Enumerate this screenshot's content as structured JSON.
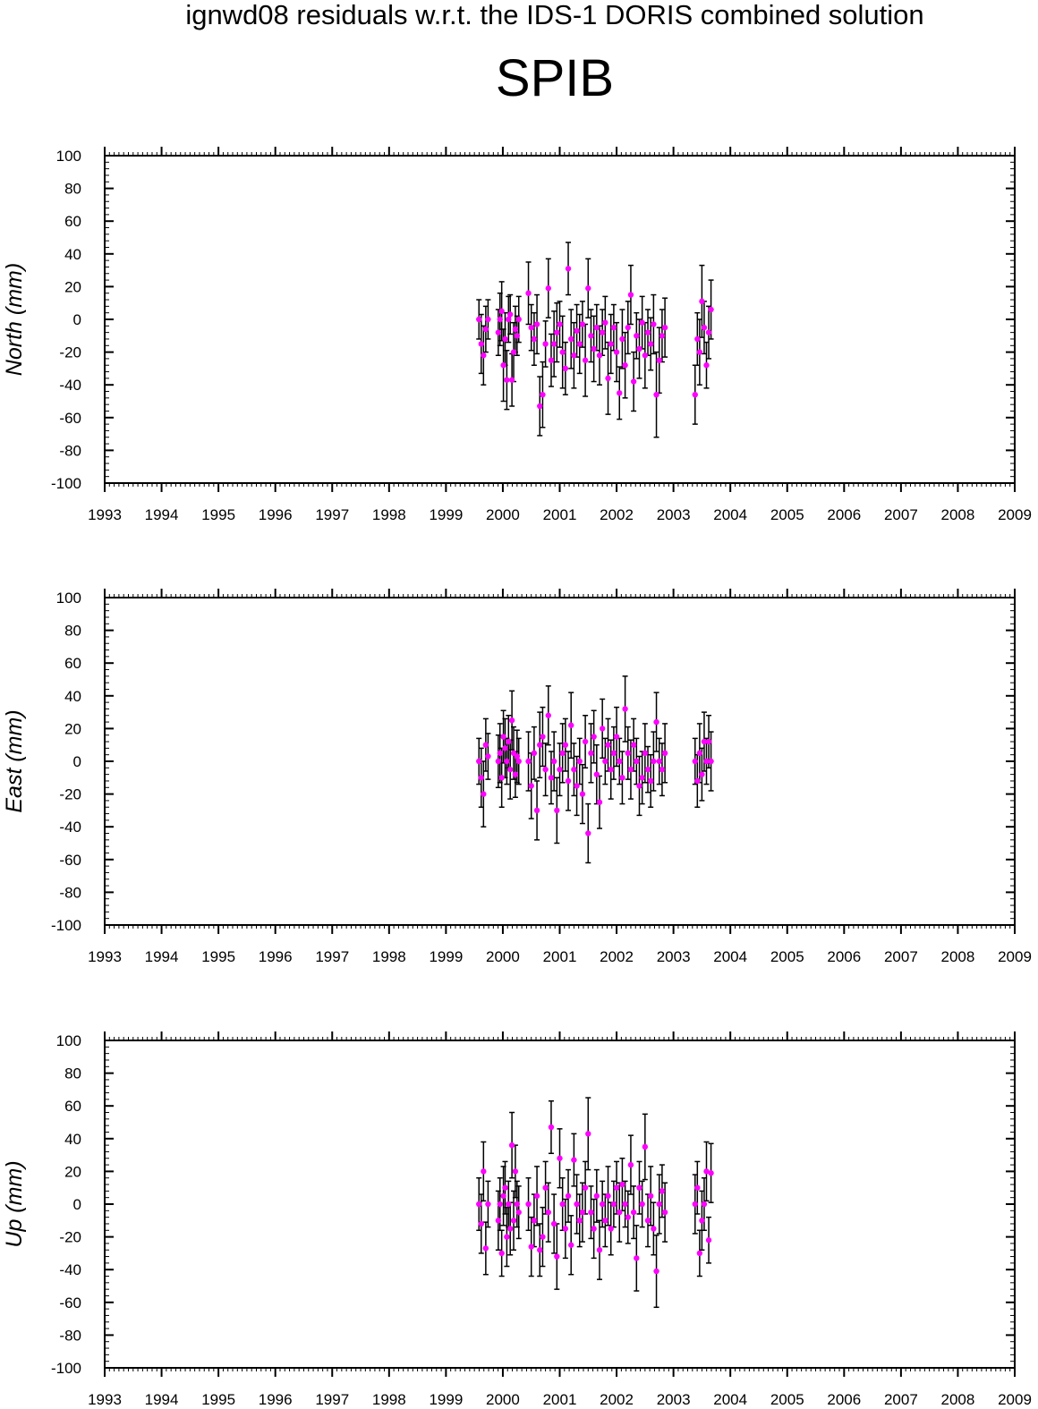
{
  "header": {
    "title": "ignwd08 residuals w.r.t. the IDS-1 DORIS combined solution",
    "station": "SPIB"
  },
  "colors": {
    "point": "#ff00ff",
    "errorbar": "#000000",
    "axes": "#000000"
  },
  "chart_data": [
    {
      "type": "scatter",
      "ylabel": "North (mm)",
      "xlim": [
        1993,
        2009
      ],
      "ylim": [
        -100,
        100
      ],
      "xticks": [
        "1993",
        "1994",
        "1995",
        "1996",
        "1997",
        "1998",
        "1999",
        "2000",
        "2001",
        "2002",
        "2003",
        "2004",
        "2005",
        "2006",
        "2007",
        "2008",
        "2009"
      ],
      "yticks": [
        "100",
        "80",
        "60",
        "40",
        "20",
        "0",
        "-20",
        "-40",
        "-60",
        "-80",
        "-100"
      ],
      "error_bars": true,
      "points": [
        [
          1999.58,
          0,
          12
        ],
        [
          1999.62,
          -15,
          18
        ],
        [
          1999.66,
          -22,
          18
        ],
        [
          1999.7,
          -6,
          14
        ],
        [
          1999.74,
          0,
          12
        ],
        [
          1999.92,
          -8,
          14
        ],
        [
          1999.95,
          0,
          16
        ],
        [
          1999.98,
          5,
          18
        ],
        [
          2000.01,
          -28,
          22
        ],
        [
          2000.04,
          -12,
          16
        ],
        [
          2000.07,
          -37,
          18
        ],
        [
          2000.1,
          0,
          14
        ],
        [
          2000.13,
          3,
          12
        ],
        [
          2000.16,
          -37,
          16
        ],
        [
          2000.19,
          -20,
          18
        ],
        [
          2000.22,
          -6,
          14
        ],
        [
          2000.25,
          -10,
          12
        ],
        [
          2000.28,
          0,
          14
        ],
        [
          2000.45,
          16,
          19
        ],
        [
          2000.5,
          -5,
          14
        ],
        [
          2000.55,
          -12,
          16
        ],
        [
          2000.6,
          -3,
          18
        ],
        [
          2000.65,
          -53,
          18
        ],
        [
          2000.7,
          -46,
          20
        ],
        [
          2000.75,
          -15,
          14
        ],
        [
          2000.8,
          19,
          18
        ],
        [
          2000.85,
          -25,
          16
        ],
        [
          2000.9,
          -15,
          20
        ],
        [
          2000.95,
          -8,
          18
        ],
        [
          2001.0,
          -3,
          14
        ],
        [
          2001.05,
          -20,
          22
        ],
        [
          2001.1,
          -30,
          16
        ],
        [
          2001.15,
          31,
          16
        ],
        [
          2001.2,
          -12,
          18
        ],
        [
          2001.25,
          -22,
          20
        ],
        [
          2001.3,
          -7,
          16
        ],
        [
          2001.35,
          -15,
          18
        ],
        [
          2001.4,
          -3,
          14
        ],
        [
          2001.45,
          -25,
          22
        ],
        [
          2001.5,
          19,
          18
        ],
        [
          2001.55,
          -10,
          16
        ],
        [
          2001.6,
          -18,
          20
        ],
        [
          2001.65,
          -5,
          14
        ],
        [
          2001.7,
          -22,
          18
        ],
        [
          2001.75,
          -8,
          14
        ],
        [
          2001.8,
          -2,
          16
        ],
        [
          2001.85,
          -36,
          22
        ],
        [
          2001.9,
          -15,
          18
        ],
        [
          2001.95,
          -5,
          14
        ],
        [
          2002.0,
          -20,
          18
        ],
        [
          2002.05,
          -45,
          16
        ],
        [
          2002.1,
          -12,
          18
        ],
        [
          2002.15,
          -28,
          20
        ],
        [
          2002.2,
          -5,
          16
        ],
        [
          2002.25,
          15,
          18
        ],
        [
          2002.3,
          -38,
          18
        ],
        [
          2002.35,
          -10,
          14
        ],
        [
          2002.4,
          -18,
          18
        ],
        [
          2002.45,
          -2,
          16
        ],
        [
          2002.5,
          -22,
          20
        ],
        [
          2002.55,
          -8,
          14
        ],
        [
          2002.6,
          -15,
          16
        ],
        [
          2002.65,
          -3,
          18
        ],
        [
          2002.7,
          -46,
          26
        ],
        [
          2002.75,
          -25,
          20
        ],
        [
          2002.8,
          -10,
          16
        ],
        [
          2002.85,
          -5,
          18
        ],
        [
          2003.38,
          -46,
          18
        ],
        [
          2003.42,
          -12,
          16
        ],
        [
          2003.46,
          -20,
          20
        ],
        [
          2003.5,
          11,
          22
        ],
        [
          2003.54,
          -5,
          16
        ],
        [
          2003.58,
          -28,
          14
        ],
        [
          2003.62,
          -8,
          16
        ],
        [
          2003.66,
          6,
          18
        ]
      ]
    },
    {
      "type": "scatter",
      "ylabel": "East (mm)",
      "xlim": [
        1993,
        2009
      ],
      "ylim": [
        -100,
        100
      ],
      "xticks": [
        "1993",
        "1994",
        "1995",
        "1996",
        "1997",
        "1998",
        "1999",
        "2000",
        "2001",
        "2002",
        "2003",
        "2004",
        "2005",
        "2006",
        "2007",
        "2008",
        "2009"
      ],
      "yticks": [
        "100",
        "80",
        "60",
        "40",
        "20",
        "0",
        "-20",
        "-40",
        "-60",
        "-80",
        "-100"
      ],
      "error_bars": true,
      "points": [
        [
          1999.58,
          0,
          14
        ],
        [
          1999.62,
          -10,
          18
        ],
        [
          1999.66,
          -20,
          20
        ],
        [
          1999.7,
          10,
          16
        ],
        [
          1999.74,
          3,
          14
        ],
        [
          1999.92,
          0,
          16
        ],
        [
          1999.95,
          5,
          18
        ],
        [
          1999.98,
          -10,
          18
        ],
        [
          2000.01,
          15,
          16
        ],
        [
          2000.04,
          8,
          18
        ],
        [
          2000.07,
          0,
          14
        ],
        [
          2000.1,
          12,
          16
        ],
        [
          2000.13,
          -5,
          18
        ],
        [
          2000.16,
          25,
          18
        ],
        [
          2000.19,
          5,
          16
        ],
        [
          2000.22,
          -8,
          14
        ],
        [
          2000.25,
          3,
          16
        ],
        [
          2000.28,
          0,
          14
        ],
        [
          2000.45,
          0,
          18
        ],
        [
          2000.5,
          -15,
          20
        ],
        [
          2000.55,
          5,
          16
        ],
        [
          2000.6,
          -30,
          18
        ],
        [
          2000.65,
          10,
          20
        ],
        [
          2000.7,
          15,
          18
        ],
        [
          2000.75,
          -5,
          16
        ],
        [
          2000.8,
          28,
          18
        ],
        [
          2000.85,
          -10,
          16
        ],
        [
          2000.9,
          0,
          18
        ],
        [
          2000.95,
          -30,
          20
        ],
        [
          2001.0,
          -5,
          16
        ],
        [
          2001.05,
          5,
          18
        ],
        [
          2001.1,
          10,
          16
        ],
        [
          2001.15,
          -12,
          18
        ],
        [
          2001.2,
          22,
          20
        ],
        [
          2001.25,
          -5,
          16
        ],
        [
          2001.3,
          -15,
          18
        ],
        [
          2001.35,
          0,
          14
        ],
        [
          2001.4,
          -20,
          18
        ],
        [
          2001.45,
          12,
          16
        ],
        [
          2001.5,
          -44,
          18
        ],
        [
          2001.55,
          5,
          18
        ],
        [
          2001.6,
          15,
          16
        ],
        [
          2001.65,
          -8,
          18
        ],
        [
          2001.7,
          -25,
          16
        ],
        [
          2001.75,
          20,
          18
        ],
        [
          2001.8,
          0,
          14
        ],
        [
          2001.85,
          10,
          16
        ],
        [
          2001.9,
          -5,
          18
        ],
        [
          2001.95,
          5,
          16
        ],
        [
          2002.0,
          15,
          18
        ],
        [
          2002.05,
          0,
          14
        ],
        [
          2002.1,
          -10,
          16
        ],
        [
          2002.15,
          32,
          20
        ],
        [
          2002.2,
          5,
          16
        ],
        [
          2002.25,
          -5,
          18
        ],
        [
          2002.3,
          10,
          16
        ],
        [
          2002.35,
          0,
          14
        ],
        [
          2002.4,
          -15,
          18
        ],
        [
          2002.45,
          -10,
          16
        ],
        [
          2002.5,
          5,
          18
        ],
        [
          2002.55,
          -5,
          14
        ],
        [
          2002.6,
          -12,
          16
        ],
        [
          2002.65,
          0,
          18
        ],
        [
          2002.7,
          24,
          18
        ],
        [
          2002.75,
          0,
          14
        ],
        [
          2002.8,
          -5,
          16
        ],
        [
          2002.85,
          5,
          18
        ],
        [
          2003.38,
          0,
          14
        ],
        [
          2003.42,
          -12,
          16
        ],
        [
          2003.46,
          5,
          18
        ],
        [
          2003.5,
          -8,
          16
        ],
        [
          2003.54,
          12,
          18
        ],
        [
          2003.58,
          0,
          14
        ],
        [
          2003.62,
          12,
          16
        ],
        [
          2003.66,
          0,
          18
        ]
      ]
    },
    {
      "type": "scatter",
      "ylabel": "Up (mm)",
      "xlim": [
        1993,
        2009
      ],
      "ylim": [
        -100,
        100
      ],
      "xticks": [
        "1993",
        "1994",
        "1995",
        "1996",
        "1997",
        "1998",
        "1999",
        "2000",
        "2001",
        "2002",
        "2003",
        "2004",
        "2005",
        "2006",
        "2007",
        "2008",
        "2009"
      ],
      "yticks": [
        "100",
        "80",
        "60",
        "40",
        "20",
        "0",
        "-20",
        "-40",
        "-60",
        "-80",
        "-100"
      ],
      "error_bars": true,
      "points": [
        [
          1999.58,
          0,
          16
        ],
        [
          1999.62,
          -12,
          18
        ],
        [
          1999.66,
          20,
          18
        ],
        [
          1999.7,
          -27,
          16
        ],
        [
          1999.74,
          0,
          14
        ],
        [
          1999.92,
          -10,
          18
        ],
        [
          1999.95,
          0,
          16
        ],
        [
          1999.98,
          -30,
          14
        ],
        [
          2000.01,
          5,
          18
        ],
        [
          2000.04,
          10,
          16
        ],
        [
          2000.07,
          -20,
          18
        ],
        [
          2000.1,
          0,
          14
        ],
        [
          2000.13,
          -15,
          16
        ],
        [
          2000.16,
          36,
          20
        ],
        [
          2000.19,
          -10,
          18
        ],
        [
          2000.22,
          20,
          16
        ],
        [
          2000.25,
          0,
          14
        ],
        [
          2000.28,
          -5,
          16
        ],
        [
          2000.45,
          0,
          16
        ],
        [
          2000.5,
          -26,
          18
        ],
        [
          2000.55,
          -10,
          16
        ],
        [
          2000.6,
          5,
          18
        ],
        [
          2000.65,
          -28,
          16
        ],
        [
          2000.7,
          -20,
          18
        ],
        [
          2000.75,
          10,
          16
        ],
        [
          2000.8,
          -5,
          18
        ],
        [
          2000.85,
          47,
          16
        ],
        [
          2000.9,
          -12,
          18
        ],
        [
          2000.95,
          -32,
          20
        ],
        [
          2001.0,
          28,
          18
        ],
        [
          2001.05,
          0,
          16
        ],
        [
          2001.1,
          -15,
          18
        ],
        [
          2001.15,
          5,
          16
        ],
        [
          2001.2,
          -25,
          18
        ],
        [
          2001.25,
          27,
          16
        ],
        [
          2001.3,
          0,
          18
        ],
        [
          2001.35,
          -10,
          16
        ],
        [
          2001.4,
          -5,
          18
        ],
        [
          2001.45,
          10,
          16
        ],
        [
          2001.5,
          43,
          22
        ],
        [
          2001.55,
          -5,
          16
        ],
        [
          2001.6,
          -15,
          18
        ],
        [
          2001.65,
          5,
          16
        ],
        [
          2001.7,
          -28,
          18
        ],
        [
          2001.75,
          0,
          14
        ],
        [
          2001.8,
          -10,
          16
        ],
        [
          2001.85,
          5,
          18
        ],
        [
          2001.9,
          -15,
          16
        ],
        [
          2001.95,
          0,
          14
        ],
        [
          2002.0,
          10,
          16
        ],
        [
          2002.05,
          -5,
          18
        ],
        [
          2002.1,
          12,
          16
        ],
        [
          2002.15,
          0,
          14
        ],
        [
          2002.2,
          -8,
          16
        ],
        [
          2002.25,
          24,
          18
        ],
        [
          2002.3,
          -5,
          16
        ],
        [
          2002.35,
          -33,
          20
        ],
        [
          2002.4,
          10,
          16
        ],
        [
          2002.45,
          0,
          14
        ],
        [
          2002.5,
          35,
          20
        ],
        [
          2002.55,
          -10,
          16
        ],
        [
          2002.6,
          5,
          18
        ],
        [
          2002.65,
          -15,
          16
        ],
        [
          2002.7,
          -41,
          22
        ],
        [
          2002.75,
          0,
          18
        ],
        [
          2002.8,
          8,
          16
        ],
        [
          2002.85,
          -5,
          18
        ],
        [
          2003.38,
          0,
          18
        ],
        [
          2003.42,
          10,
          16
        ],
        [
          2003.46,
          -30,
          14
        ],
        [
          2003.5,
          -10,
          18
        ],
        [
          2003.54,
          0,
          16
        ],
        [
          2003.58,
          20,
          18
        ],
        [
          2003.62,
          -22,
          14
        ],
        [
          2003.66,
          19,
          18
        ]
      ]
    }
  ]
}
